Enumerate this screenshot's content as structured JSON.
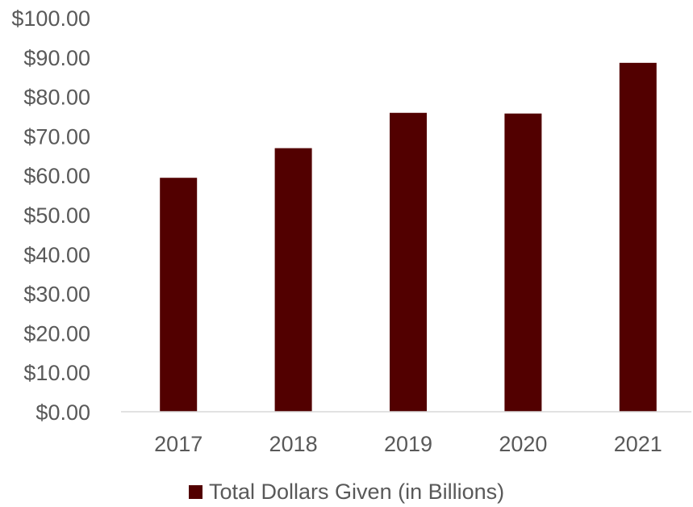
{
  "chart_data": {
    "type": "bar",
    "title": "",
    "xlabel": "",
    "ylabel": "",
    "categories": [
      "2017",
      "2018",
      "2019",
      "2020",
      "2021"
    ],
    "series": [
      {
        "name": "Total Dollars Given (in Billions)",
        "color": "#520000",
        "values": [
          59.38,
          66.9,
          75.87,
          75.69,
          88.56
        ]
      }
    ],
    "ylim": [
      0,
      100
    ],
    "y_ticks": [
      0,
      10,
      20,
      30,
      40,
      50,
      60,
      70,
      80,
      90,
      100
    ],
    "y_tick_labels": [
      "$0.00",
      "$10.00",
      "$20.00",
      "$30.00",
      "$40.00",
      "$50.00",
      "$60.00",
      "$70.00",
      "$80.00",
      "$90.00",
      "$100.00"
    ],
    "grid": false,
    "legend_position": "bottom",
    "axis_color": "#d9d9d9"
  }
}
